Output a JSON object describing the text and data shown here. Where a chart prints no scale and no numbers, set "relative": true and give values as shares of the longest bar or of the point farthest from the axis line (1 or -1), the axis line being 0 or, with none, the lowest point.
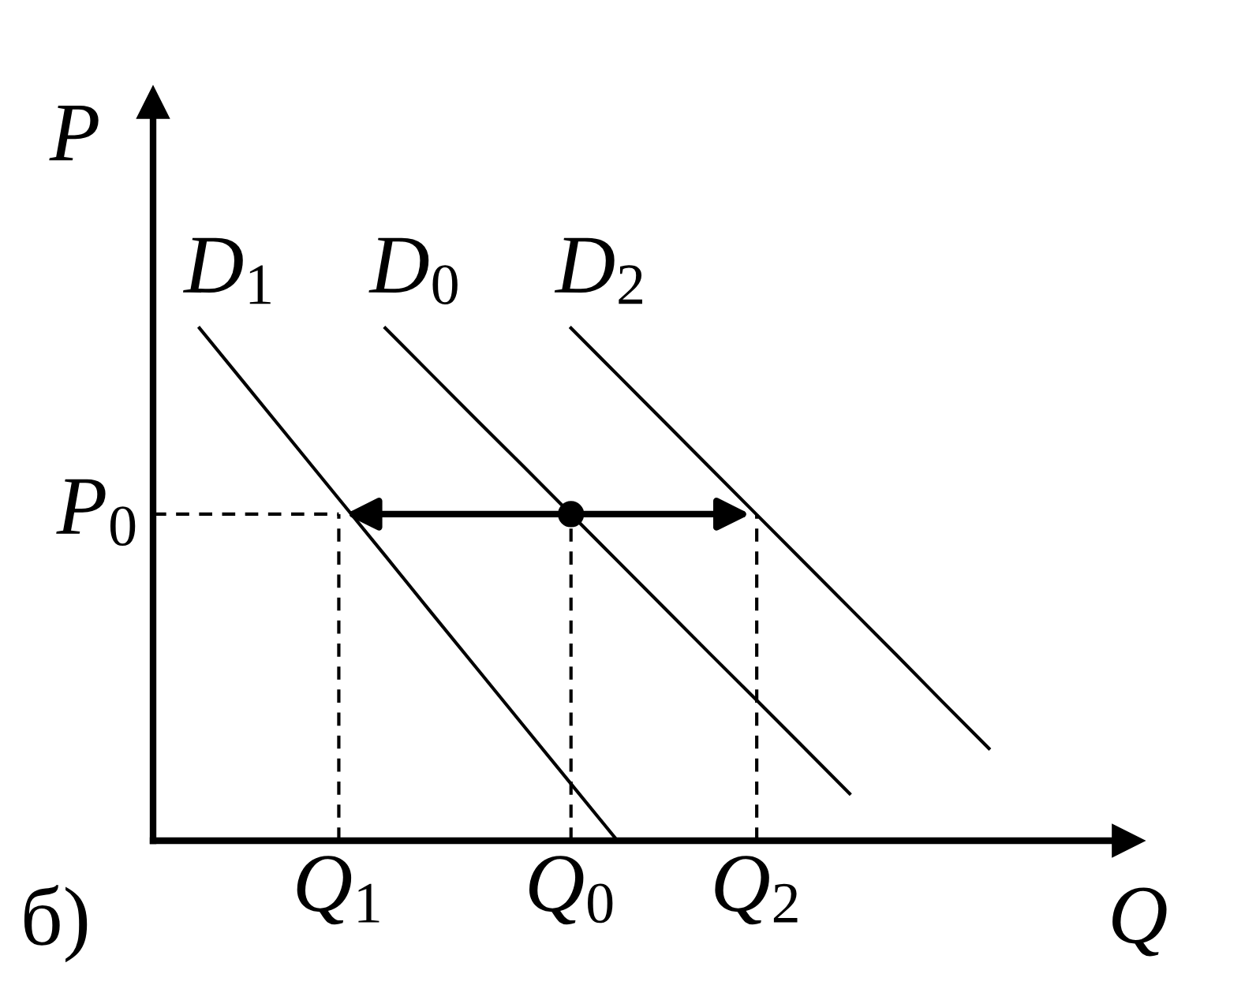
{
  "chart_data": {
    "type": "line",
    "relative": true,
    "xlabel": "Q",
    "ylabel": "P",
    "categories": [
      null,
      null,
      null,
      null,
      "Q$_{1}$",
      null,
      null,
      null,
      null,
      "Q$_{0}$",
      null,
      null,
      null,
      "Q$_{2}$",
      null,
      null,
      null,
      null,
      null,
      null,
      null,
      null
    ],
    "tick_labels": "x",
    "grid": false,
    "legend": false,
    "annotations": [
      "P$_{0}$",
      "б)"
    ],
    "series": [
      {
        "name": "D$_{1}$",
        "color": "#000000",
        "values": [
          null,
          1,
          0.889,
          0.778,
          0.667,
          0.556,
          0.444,
          0.333,
          0.222,
          0.111,
          0,
          null,
          null,
          null,
          null,
          null,
          null,
          null,
          null,
          null,
          null,
          null
        ]
      },
      {
        "name": "D$_{0}$",
        "color": "#000000",
        "values": [
          null,
          null,
          null,
          null,
          null,
          1,
          0.909,
          0.818,
          0.728,
          0.637,
          0.546,
          0.455,
          0.364,
          0.274,
          0.183,
          0.092,
          null,
          null,
          null,
          null,
          null,
          null
        ]
      },
      {
        "name": "D$_{2}$",
        "color": "#000000",
        "values": [
          null,
          null,
          null,
          null,
          null,
          null,
          null,
          null,
          null,
          1,
          0.909,
          0.818,
          0.727,
          0.636,
          0.545,
          0.454,
          0.363,
          0.271,
          0.18,
          null,
          null,
          null
        ]
      },
      {
        "color": "#000000",
        "line_style": "dashed",
        "values": [
          0.637,
          0.637,
          0.637,
          0.637,
          0.637,
          null,
          null,
          null,
          null,
          null,
          null,
          null,
          null,
          null,
          null,
          null,
          null,
          null,
          null,
          null,
          null,
          null
        ]
      },
      {
        "type": "scatter",
        "color": "#000000",
        "marker": "circle",
        "values": [
          null,
          null,
          null,
          null,
          null,
          null,
          null,
          null,
          null,
          0.637,
          null,
          null,
          null,
          null,
          null,
          null,
          null,
          null,
          null,
          null,
          null,
          null
        ]
      }
    ]
  }
}
